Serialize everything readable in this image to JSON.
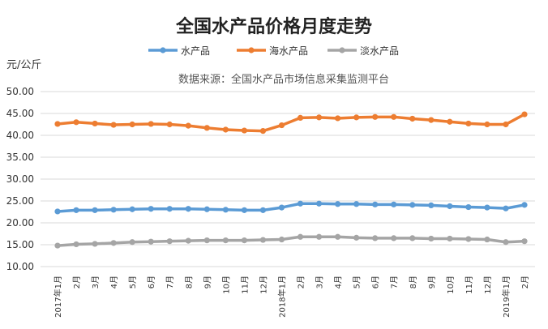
{
  "chart_data": {
    "type": "line",
    "title": "全国水产品价格月度走势",
    "ylabel": "元/公斤",
    "source": "数据来源：全国水产品市场信息采集监测平台",
    "ylim": [
      10,
      50
    ],
    "yticks": [
      "10.00",
      "15.00",
      "20.00",
      "25.00",
      "30.00",
      "35.00",
      "40.00",
      "45.00",
      "50.00"
    ],
    "grid": true,
    "legend_position": "top",
    "categories": [
      "2017年1月",
      "2月",
      "3月",
      "4月",
      "5月",
      "6月",
      "7月",
      "8月",
      "9月",
      "10月",
      "11月",
      "12月",
      "2018年1月",
      "2月",
      "3月",
      "4月",
      "5月",
      "6月",
      "7月",
      "8月",
      "9月",
      "10月",
      "11月",
      "12月",
      "2019年1月",
      "2月"
    ],
    "series": [
      {
        "name": "水产品",
        "color": "#5b9bd5",
        "values": [
          22.6,
          22.9,
          22.9,
          23.0,
          23.1,
          23.2,
          23.2,
          23.2,
          23.1,
          23.0,
          22.9,
          22.9,
          23.5,
          24.4,
          24.4,
          24.3,
          24.3,
          24.2,
          24.2,
          24.1,
          24.0,
          23.8,
          23.6,
          23.5,
          23.3,
          24.1
        ]
      },
      {
        "name": "海水产品",
        "color": "#ed7d31",
        "values": [
          42.6,
          43.0,
          42.7,
          42.4,
          42.5,
          42.6,
          42.5,
          42.2,
          41.7,
          41.3,
          41.1,
          41.0,
          42.3,
          44.0,
          44.1,
          43.9,
          44.1,
          44.2,
          44.2,
          43.8,
          43.5,
          43.1,
          42.7,
          42.5,
          42.5,
          44.8
        ]
      },
      {
        "name": "淡水产品",
        "color": "#a5a5a5",
        "values": [
          14.8,
          15.1,
          15.2,
          15.4,
          15.6,
          15.7,
          15.8,
          15.9,
          16.0,
          16.0,
          16.0,
          16.1,
          16.2,
          16.8,
          16.8,
          16.8,
          16.6,
          16.5,
          16.5,
          16.5,
          16.4,
          16.4,
          16.3,
          16.2,
          15.6,
          15.8
        ]
      }
    ]
  }
}
